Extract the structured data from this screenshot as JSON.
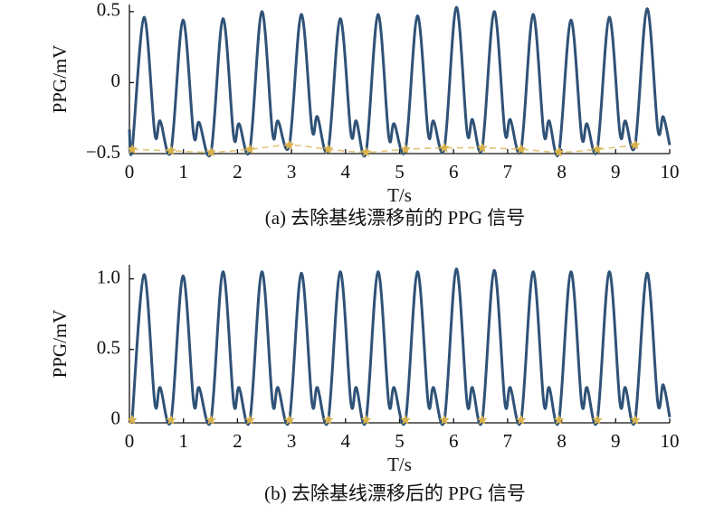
{
  "chart_data": [
    {
      "type": "line",
      "title": "(a) 去除基线漂移前的 PPG 信号",
      "x_label": "T/s",
      "y_label": "PPG/mV",
      "xlim": [
        0,
        10
      ],
      "xticks": [
        0,
        1,
        2,
        3,
        4,
        5,
        6,
        7,
        8,
        9,
        10
      ],
      "ylim": [
        -0.5,
        0.55
      ],
      "yticks": [
        {
          "value": -0.5,
          "label": "−0.5"
        },
        0,
        0.5
      ],
      "series": [
        {
          "color": "#2f5277",
          "marker": "none",
          "line_style": "solid",
          "x": [
            0,
            0.05,
            0.27,
            0.47,
            0.57,
            0.77,
            0.99,
            1.19,
            1.29,
            1.51,
            1.73,
            1.93,
            2.03,
            2.23,
            2.45,
            2.65,
            2.75,
            2.96,
            3.18,
            3.38,
            3.48,
            3.68,
            3.9,
            4.1,
            4.2,
            4.38,
            4.6,
            4.8,
            4.9,
            5.11,
            5.33,
            5.53,
            5.63,
            5.83,
            6.05,
            6.25,
            6.35,
            6.53,
            6.75,
            6.95,
            7.05,
            7.25,
            7.47,
            7.67,
            7.77,
            7.95,
            8.17,
            8.37,
            8.47,
            8.66,
            8.88,
            9.08,
            9.18,
            9.36,
            9.58,
            9.78,
            9.88,
            10
          ],
          "values": [
            -0.33,
            -0.47,
            0.46,
            -0.36,
            -0.27,
            -0.48,
            0.44,
            -0.37,
            -0.28,
            -0.49,
            0.45,
            -0.38,
            -0.29,
            -0.47,
            0.5,
            -0.36,
            -0.27,
            -0.44,
            0.48,
            -0.33,
            -0.24,
            -0.47,
            0.45,
            -0.36,
            -0.27,
            -0.49,
            0.48,
            -0.38,
            -0.29,
            -0.47,
            0.47,
            -0.36,
            -0.27,
            -0.46,
            0.53,
            -0.35,
            -0.26,
            -0.46,
            0.5,
            -0.35,
            -0.26,
            -0.47,
            0.48,
            -0.36,
            -0.27,
            -0.49,
            0.44,
            -0.38,
            -0.29,
            -0.47,
            0.46,
            -0.36,
            -0.27,
            -0.44,
            0.52,
            -0.33,
            -0.24,
            -0.44
          ]
        },
        {
          "color": "#d9b24c",
          "marker": "star",
          "line_style": "dashed",
          "x": [
            0.05,
            0.77,
            1.51,
            2.23,
            2.96,
            3.68,
            4.38,
            5.11,
            5.83,
            6.53,
            7.25,
            7.95,
            8.66,
            9.36
          ],
          "values": [
            -0.47,
            -0.48,
            -0.49,
            -0.47,
            -0.44,
            -0.47,
            -0.49,
            -0.47,
            -0.46,
            -0.46,
            -0.47,
            -0.49,
            -0.47,
            -0.44
          ]
        }
      ]
    },
    {
      "type": "line",
      "title": "(b) 去除基线漂移后的 PPG 信号",
      "x_label": "T/s",
      "y_label": "PPG/mV",
      "xlim": [
        0,
        10
      ],
      "xticks": [
        0,
        1,
        2,
        3,
        4,
        5,
        6,
        7,
        8,
        9,
        10
      ],
      "ylim": [
        -0.02,
        1.1
      ],
      "yticks": [
        0,
        0.5,
        {
          "value": 1,
          "label": "1.0"
        }
      ],
      "series": [
        {
          "color": "#2f5277",
          "marker": "none",
          "line_style": "solid",
          "x": [
            0.05,
            0.27,
            0.47,
            0.57,
            0.77,
            0.99,
            1.19,
            1.29,
            1.51,
            1.73,
            1.93,
            2.03,
            2.23,
            2.45,
            2.65,
            2.75,
            2.96,
            3.18,
            3.38,
            3.48,
            3.68,
            3.9,
            4.1,
            4.2,
            4.38,
            4.6,
            4.8,
            4.9,
            5.11,
            5.33,
            5.53,
            5.63,
            5.83,
            6.05,
            6.25,
            6.35,
            6.53,
            6.75,
            6.95,
            7.05,
            7.25,
            7.47,
            7.67,
            7.77,
            7.95,
            8.17,
            8.37,
            8.47,
            8.66,
            8.88,
            9.08,
            9.18,
            9.36,
            9.58,
            9.78,
            9.88,
            10
          ],
          "values": [
            0,
            1.03,
            0.12,
            0.23,
            0,
            1.02,
            0.12,
            0.23,
            0,
            1.05,
            0.12,
            0.23,
            0,
            1.05,
            0.12,
            0.23,
            0,
            1.04,
            0.12,
            0.23,
            0,
            1.05,
            0.12,
            0.23,
            0,
            1.05,
            0.12,
            0.23,
            0,
            1.05,
            0.12,
            0.23,
            0,
            1.07,
            0.12,
            0.23,
            0,
            1.06,
            0.12,
            0.23,
            0,
            1.05,
            0.12,
            0.23,
            0,
            1.05,
            0.12,
            0.23,
            0,
            1.05,
            0.12,
            0.23,
            0,
            1.04,
            0.12,
            0.25,
            0.02
          ]
        },
        {
          "color": "#d9b24c",
          "marker": "star",
          "line_style": "none",
          "x": [
            0.05,
            0.77,
            1.51,
            2.23,
            2.96,
            3.68,
            4.38,
            5.11,
            5.83,
            6.53,
            7.25,
            7.95,
            8.66,
            9.36
          ],
          "values": [
            0,
            0,
            0,
            0,
            0,
            0,
            0,
            0,
            0,
            0,
            0,
            0,
            0,
            0
          ]
        }
      ]
    }
  ]
}
